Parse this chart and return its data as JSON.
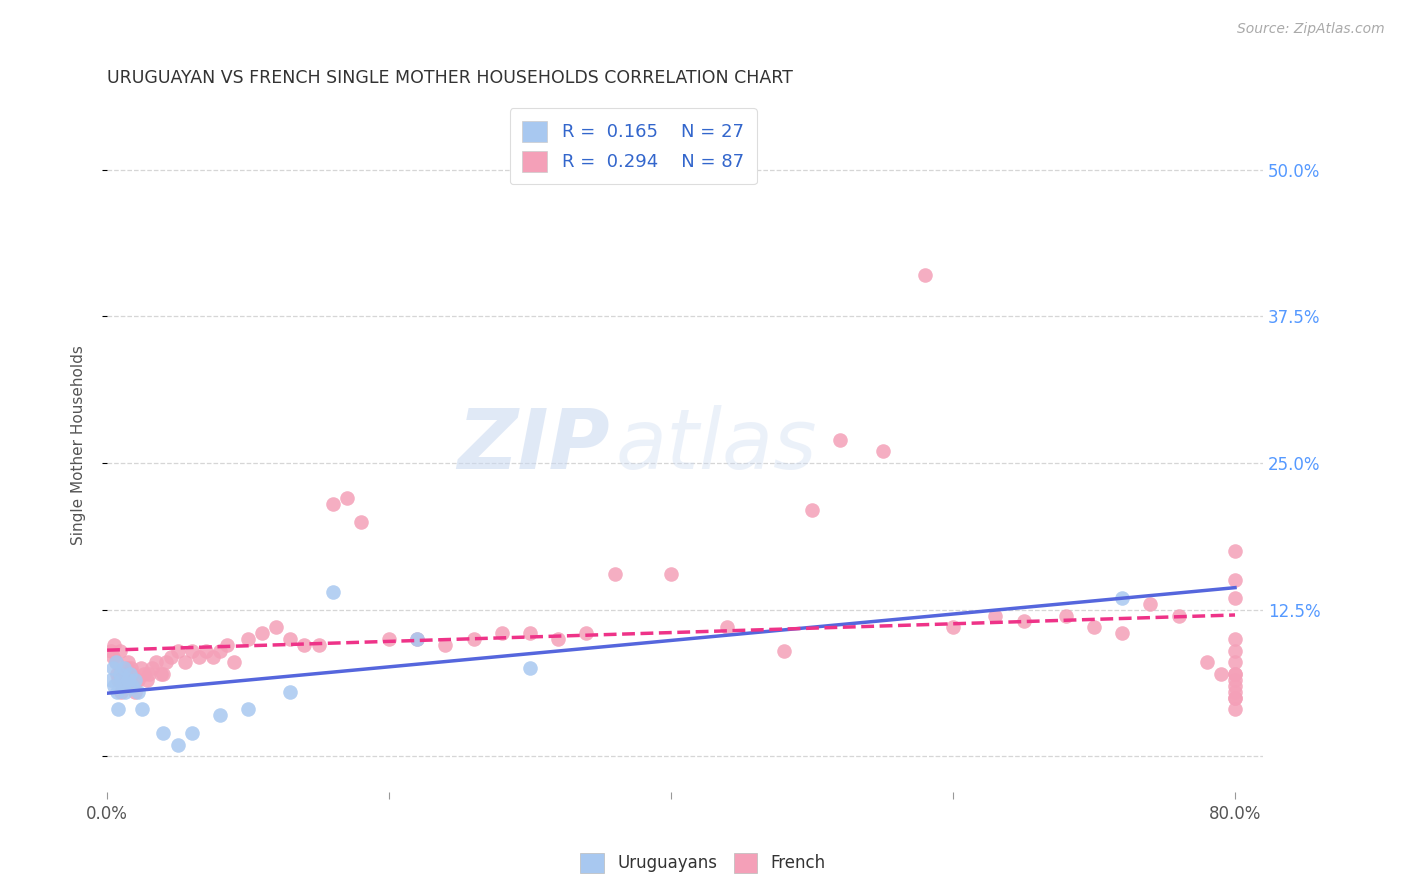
{
  "title": "URUGUAYAN VS FRENCH SINGLE MOTHER HOUSEHOLDS CORRELATION CHART",
  "source": "Source: ZipAtlas.com",
  "ylabel": "Single Mother Households",
  "xlim": [
    0.0,
    0.82
  ],
  "ylim": [
    -0.03,
    0.56
  ],
  "ytick_positions": [
    0.0,
    0.125,
    0.25,
    0.375,
    0.5
  ],
  "ytick_labels_right": [
    "",
    "12.5%",
    "25.0%",
    "37.5%",
    "50.0%"
  ],
  "grid_color": "#cccccc",
  "background_color": "#ffffff",
  "uruguayan_color": "#a8c8f0",
  "french_color": "#f4a0b8",
  "trend_uruguayan_color": "#5566dd",
  "trend_french_color": "#ee3388",
  "R_uruguayan": 0.165,
  "N_uruguayan": 27,
  "R_french": 0.294,
  "N_french": 87,
  "watermark_zip": "ZIP",
  "watermark_atlas": "atlas",
  "legend_label_color": "#333333",
  "legend_value_color": "#3366cc",
  "uruguayan_x": [
    0.003,
    0.004,
    0.005,
    0.006,
    0.007,
    0.008,
    0.009,
    0.01,
    0.011,
    0.012,
    0.013,
    0.015,
    0.016,
    0.018,
    0.02,
    0.022,
    0.025,
    0.04,
    0.05,
    0.06,
    0.08,
    0.1,
    0.13,
    0.16,
    0.22,
    0.3,
    0.72
  ],
  "uruguayan_y": [
    0.065,
    0.075,
    0.06,
    0.08,
    0.055,
    0.04,
    0.07,
    0.065,
    0.06,
    0.075,
    0.055,
    0.065,
    0.07,
    0.06,
    0.065,
    0.055,
    0.04,
    0.02,
    0.01,
    0.02,
    0.035,
    0.04,
    0.055,
    0.14,
    0.1,
    0.075,
    0.135
  ],
  "french_x": [
    0.003,
    0.004,
    0.005,
    0.006,
    0.007,
    0.008,
    0.009,
    0.01,
    0.011,
    0.012,
    0.013,
    0.014,
    0.015,
    0.016,
    0.017,
    0.018,
    0.019,
    0.02,
    0.022,
    0.024,
    0.026,
    0.028,
    0.03,
    0.032,
    0.035,
    0.038,
    0.04,
    0.042,
    0.045,
    0.05,
    0.055,
    0.06,
    0.065,
    0.07,
    0.075,
    0.08,
    0.085,
    0.09,
    0.1,
    0.11,
    0.12,
    0.13,
    0.14,
    0.15,
    0.16,
    0.17,
    0.18,
    0.2,
    0.22,
    0.24,
    0.26,
    0.28,
    0.3,
    0.32,
    0.34,
    0.36,
    0.4,
    0.44,
    0.48,
    0.5,
    0.52,
    0.55,
    0.58,
    0.6,
    0.63,
    0.65,
    0.68,
    0.7,
    0.72,
    0.74,
    0.76,
    0.78,
    0.79,
    0.8,
    0.8,
    0.8,
    0.8,
    0.8,
    0.8,
    0.8,
    0.8,
    0.8,
    0.8,
    0.8,
    0.8,
    0.8,
    0.8
  ],
  "french_y": [
    0.09,
    0.085,
    0.095,
    0.08,
    0.07,
    0.065,
    0.09,
    0.055,
    0.07,
    0.065,
    0.06,
    0.075,
    0.08,
    0.065,
    0.075,
    0.07,
    0.06,
    0.055,
    0.065,
    0.075,
    0.07,
    0.065,
    0.07,
    0.075,
    0.08,
    0.07,
    0.07,
    0.08,
    0.085,
    0.09,
    0.08,
    0.09,
    0.085,
    0.09,
    0.085,
    0.09,
    0.095,
    0.08,
    0.1,
    0.105,
    0.11,
    0.1,
    0.095,
    0.095,
    0.215,
    0.22,
    0.2,
    0.1,
    0.1,
    0.095,
    0.1,
    0.105,
    0.105,
    0.1,
    0.105,
    0.155,
    0.155,
    0.11,
    0.09,
    0.21,
    0.27,
    0.26,
    0.41,
    0.11,
    0.12,
    0.115,
    0.12,
    0.11,
    0.105,
    0.13,
    0.12,
    0.08,
    0.07,
    0.09,
    0.15,
    0.135,
    0.07,
    0.08,
    0.1,
    0.175,
    0.05,
    0.06,
    0.04,
    0.065,
    0.07,
    0.05,
    0.055
  ]
}
